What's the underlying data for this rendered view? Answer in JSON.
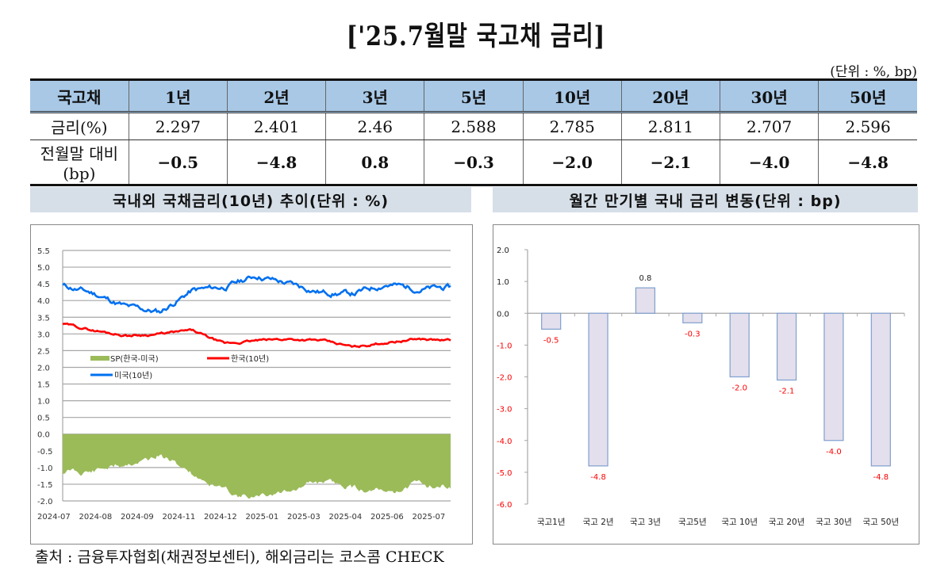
{
  "title": "['25.7월말 국고채 금리]",
  "unit_note": "(단위 : %, bp)",
  "table": {
    "headers": [
      "국고채",
      "1년",
      "2년",
      "3년",
      "5년",
      "10년",
      "20년",
      "30년",
      "50년"
    ],
    "rows": [
      {
        "label": "금리(%)",
        "values": [
          "2.297",
          "2.401",
          "2.46",
          "2.588",
          "2.785",
          "2.811",
          "2.707",
          "2.596"
        ]
      },
      {
        "label": "전월말 대비(bp)",
        "values": [
          "−0.5",
          "−4.8",
          "0.8",
          "−0.3",
          "−2.0",
          "−2.1",
          "−4.0",
          "−4.8"
        ]
      }
    ]
  },
  "left_panel": {
    "title": "국내외 국채금리(10년) 추이(단위 : %)"
  },
  "right_panel": {
    "title": "월간 만기별 국내 금리 변동(단위 : bp)"
  },
  "source": "출처 : 금융투자협회(채권정보센터), 해외금리는 코스콤 CHECK",
  "colors": {
    "header_bg": "#a8c8e6",
    "panel_bg": "#d6dfe8",
    "korea": "#ff0000",
    "us": "#0070f0",
    "spread": "#9bbb59",
    "bar_fill": "#e4dfec",
    "bar_border": "#7f9fcf",
    "neg_label": "#ff0000"
  },
  "chart_data": [
    {
      "type": "line",
      "title": "국내외 국채금리(10년) 추이(단위 : %)",
      "xlabel": "",
      "ylabel": "%",
      "ylim": [
        -2.0,
        5.5
      ],
      "yticks": [
        "5.5",
        "5.0",
        "4.5",
        "4.0",
        "3.5",
        "3.0",
        "2.5",
        "2.0",
        "1.5",
        "1.0",
        "0.5",
        "0.0",
        "-0.5",
        "-1.0",
        "-1.5",
        "-2.0"
      ],
      "x_ticks": [
        "2024-07",
        "2024-08",
        "2024-09",
        "2024-11",
        "2024-12",
        "2025-01",
        "2025-03",
        "2025-04",
        "2025-06",
        "2025-07"
      ],
      "legend": [
        "SP(한국-미국)",
        "한국(10년)",
        "미국(10년)"
      ],
      "grid": true,
      "x": [
        "2024-07",
        "2024-08",
        "2024-09",
        "2024-10",
        "2024-11",
        "2024-12",
        "2025-01",
        "2025-02",
        "2025-03",
        "2025-04",
        "2025-05",
        "2025-06",
        "2025-07"
      ],
      "series": [
        {
          "name": "미국(10년)",
          "type": "line",
          "values": [
            4.45,
            4.2,
            3.8,
            3.65,
            4.3,
            4.4,
            4.75,
            4.5,
            4.25,
            4.2,
            4.5,
            4.35,
            4.38
          ]
        },
        {
          "name": "한국(10년)",
          "type": "line",
          "values": [
            3.3,
            3.1,
            2.95,
            3.0,
            3.1,
            2.7,
            2.8,
            2.85,
            2.8,
            2.6,
            2.75,
            2.85,
            2.8
          ]
        },
        {
          "name": "SP(한국-미국)",
          "type": "area",
          "values": [
            -1.15,
            -1.1,
            -0.85,
            -0.7,
            -1.2,
            -1.7,
            -1.9,
            -1.65,
            -1.45,
            -1.6,
            -1.75,
            -1.5,
            -1.58
          ]
        }
      ]
    },
    {
      "type": "bar",
      "title": "월간 만기별 국내 금리 변동(단위 : bp)",
      "categories": [
        "국고1년",
        "국고 2년",
        "국고 3년",
        "국고5년",
        "국고 10년",
        "국고 20년",
        "국고 30년",
        "국고 50년"
      ],
      "values": [
        -0.5,
        -4.8,
        0.8,
        -0.3,
        -2.0,
        -2.1,
        -4.0,
        -4.8
      ],
      "labels": [
        "-0.5",
        "-4.8",
        "0.8",
        "-0.3",
        "-2.0",
        "-2.1",
        "-4.0",
        "-4.8"
      ],
      "yticks": [
        "2.0",
        "1.0",
        "0.0",
        "-1.0",
        "-2.0",
        "-3.0",
        "-4.0",
        "-5.0",
        "-6.0"
      ],
      "ylim": [
        -6.0,
        2.0
      ],
      "xlabel": "",
      "ylabel": "bp",
      "grid": false
    }
  ]
}
